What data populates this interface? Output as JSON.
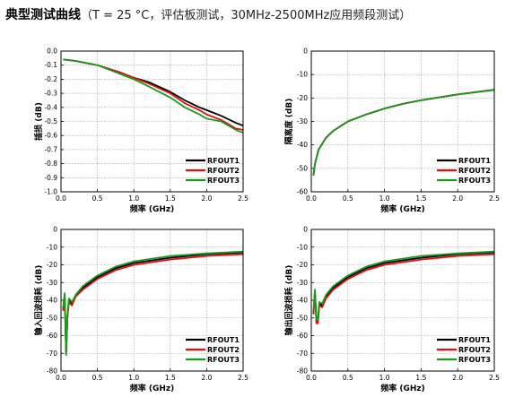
{
  "header": {
    "title": "典型测试曲线",
    "subtitle": "（T = 25 °C，评估板测试，30MHz-2500MHz应用频段测试）"
  },
  "chart_data": [
    {
      "type": "line",
      "xlabel": "频率 (GHz)",
      "ylabel": "插损 (dB)",
      "xlim": [
        0.0,
        2.5
      ],
      "ylim": [
        -1.0,
        0.0
      ],
      "xticks": [
        "0.0",
        "0.5",
        "1.0",
        "1.5",
        "2.0",
        "2.5"
      ],
      "yticks": [
        "0.0",
        "-0.1",
        "-0.2",
        "-0.3",
        "-0.4",
        "-0.5",
        "-0.6",
        "-0.7",
        "-0.8",
        "-0.9",
        "-1.0"
      ],
      "grid": true,
      "legend": "bottom-right",
      "series": [
        {
          "name": "RFOUT1",
          "color": "#000000",
          "x": [
            0.03,
            0.2,
            0.5,
            0.8,
            1.0,
            1.2,
            1.5,
            1.7,
            1.9,
            2.0,
            2.2,
            2.4,
            2.5
          ],
          "y": [
            -0.06,
            -0.07,
            -0.1,
            -0.15,
            -0.19,
            -0.22,
            -0.29,
            -0.35,
            -0.4,
            -0.42,
            -0.46,
            -0.51,
            -0.53
          ]
        },
        {
          "name": "RFOUT2",
          "color": "#e01010",
          "x": [
            0.03,
            0.2,
            0.5,
            0.8,
            1.0,
            1.2,
            1.5,
            1.7,
            1.9,
            2.0,
            2.2,
            2.4,
            2.5
          ],
          "y": [
            -0.06,
            -0.07,
            -0.1,
            -0.15,
            -0.19,
            -0.23,
            -0.3,
            -0.37,
            -0.42,
            -0.45,
            -0.49,
            -0.55,
            -0.56
          ]
        },
        {
          "name": "RFOUT3",
          "color": "#1a9a1a",
          "x": [
            0.03,
            0.2,
            0.5,
            0.8,
            1.0,
            1.2,
            1.5,
            1.7,
            1.9,
            2.0,
            2.2,
            2.4,
            2.5
          ],
          "y": [
            -0.06,
            -0.07,
            -0.1,
            -0.16,
            -0.2,
            -0.25,
            -0.33,
            -0.4,
            -0.45,
            -0.48,
            -0.5,
            -0.56,
            -0.58
          ]
        }
      ]
    },
    {
      "type": "line",
      "xlabel": "频率 (GHz)",
      "ylabel": "隔离度 (dB)",
      "xlim": [
        0.0,
        2.5
      ],
      "ylim": [
        -60,
        0
      ],
      "xticks": [
        "0.0",
        "0.5",
        "1.0",
        "1.5",
        "2.0",
        "2.5"
      ],
      "yticks": [
        "0",
        "-10",
        "-20",
        "-30",
        "-40",
        "-50",
        "-60"
      ],
      "grid": true,
      "legend": "bottom-right",
      "series": [
        {
          "name": "RFOUT1",
          "color": "#000000",
          "x": [
            0.03,
            0.05,
            0.1,
            0.2,
            0.3,
            0.5,
            0.75,
            1.0,
            1.25,
            1.5,
            2.0,
            2.5
          ],
          "y": [
            -53,
            -48,
            -42,
            -37,
            -34,
            -30,
            -27,
            -24.5,
            -22.5,
            -21,
            -18.5,
            -16.5
          ]
        },
        {
          "name": "RFOUT2",
          "color": "#e01010",
          "x": [
            0.03,
            0.05,
            0.1,
            0.2,
            0.3,
            0.5,
            0.75,
            1.0,
            1.25,
            1.5,
            2.0,
            2.5
          ],
          "y": [
            -53,
            -48,
            -42,
            -37,
            -34,
            -30,
            -27,
            -24.5,
            -22.5,
            -21,
            -18.5,
            -16.5
          ]
        },
        {
          "name": "RFOUT3",
          "color": "#1a9a1a",
          "x": [
            0.03,
            0.05,
            0.1,
            0.2,
            0.3,
            0.5,
            0.75,
            1.0,
            1.25,
            1.5,
            2.0,
            2.5
          ],
          "y": [
            -53,
            -48,
            -42,
            -37,
            -34,
            -30,
            -27,
            -24.5,
            -22.5,
            -21,
            -18.5,
            -16.5
          ]
        }
      ]
    },
    {
      "type": "line",
      "xlabel": "频率 (GHz)",
      "ylabel": "输入回波损耗 (dB)",
      "xlim": [
        0.0,
        2.5
      ],
      "ylim": [
        -80,
        0
      ],
      "xticks": [
        "0.0",
        "0.5",
        "1.0",
        "1.5",
        "2.0",
        "2.5"
      ],
      "yticks": [
        "0",
        "-10",
        "-20",
        "-30",
        "-40",
        "-50",
        "-60",
        "-70",
        "-80"
      ],
      "grid": true,
      "legend": "bottom-right",
      "series": [
        {
          "name": "RFOUT1",
          "color": "#000000",
          "x": [
            0.03,
            0.05,
            0.07,
            0.09,
            0.11,
            0.15,
            0.2,
            0.3,
            0.5,
            0.75,
            1.0,
            1.5,
            2.0,
            2.5
          ],
          "y": [
            -45,
            -37,
            -70,
            -48,
            -40,
            -42,
            -38,
            -33,
            -27,
            -22,
            -19,
            -16,
            -14,
            -13
          ]
        },
        {
          "name": "RFOUT2",
          "color": "#e01010",
          "x": [
            0.03,
            0.05,
            0.07,
            0.09,
            0.11,
            0.15,
            0.2,
            0.3,
            0.5,
            0.75,
            1.0,
            1.5,
            2.0,
            2.5
          ],
          "y": [
            -46,
            -37,
            -68,
            -49,
            -41,
            -43,
            -38,
            -34,
            -28,
            -23,
            -20,
            -17,
            -15,
            -14
          ]
        },
        {
          "name": "RFOUT3",
          "color": "#1a9a1a",
          "x": [
            0.03,
            0.05,
            0.07,
            0.09,
            0.11,
            0.15,
            0.2,
            0.3,
            0.5,
            0.75,
            1.0,
            1.5,
            2.0,
            2.5
          ],
          "y": [
            -44,
            -36,
            -71,
            -47,
            -39,
            -41,
            -37,
            -32,
            -26,
            -21,
            -18,
            -15,
            -13.5,
            -12.5
          ]
        }
      ]
    },
    {
      "type": "line",
      "xlabel": "频率 (GHz)",
      "ylabel": "输出回波损耗 (dB)",
      "xlim": [
        0.0,
        2.5
      ],
      "ylim": [
        -80,
        0
      ],
      "xticks": [
        "0.0",
        "0.5",
        "1.0",
        "1.5",
        "2.0",
        "2.5"
      ],
      "yticks": [
        "0",
        "-10",
        "-20",
        "-30",
        "-40",
        "-50",
        "-60",
        "-70",
        "-80"
      ],
      "grid": true,
      "legend": "bottom-right",
      "series": [
        {
          "name": "RFOUT1",
          "color": "#000000",
          "x": [
            0.03,
            0.05,
            0.07,
            0.09,
            0.11,
            0.15,
            0.2,
            0.3,
            0.5,
            0.75,
            1.0,
            1.5,
            2.0,
            2.5
          ],
          "y": [
            -47,
            -35,
            -52,
            -52,
            -42,
            -43,
            -38,
            -33,
            -27,
            -22,
            -19,
            -16,
            -14,
            -13
          ]
        },
        {
          "name": "RFOUT2",
          "color": "#e01010",
          "x": [
            0.03,
            0.05,
            0.07,
            0.09,
            0.11,
            0.15,
            0.2,
            0.3,
            0.5,
            0.75,
            1.0,
            1.5,
            2.0,
            2.5
          ],
          "y": [
            -48,
            -36,
            -53,
            -53,
            -43,
            -44,
            -39,
            -34,
            -28,
            -23,
            -20,
            -17,
            -15,
            -14
          ]
        },
        {
          "name": "RFOUT3",
          "color": "#1a9a1a",
          "x": [
            0.03,
            0.05,
            0.07,
            0.09,
            0.11,
            0.15,
            0.2,
            0.3,
            0.5,
            0.75,
            1.0,
            1.5,
            2.0,
            2.5
          ],
          "y": [
            -46,
            -34,
            -51,
            -51,
            -41,
            -42,
            -37,
            -32,
            -26,
            -21,
            -18,
            -15,
            -13.5,
            -12.5
          ]
        }
      ]
    }
  ]
}
